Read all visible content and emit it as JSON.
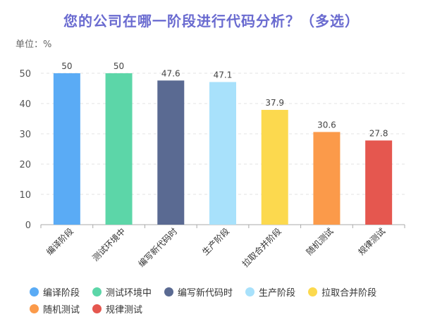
{
  "chart_data": {
    "type": "bar",
    "title": "您的公司在哪一阶段进行代码分析？（多选）",
    "unit_label": "单位：%",
    "categories": [
      "编译阶段",
      "测试环境中",
      "编写新代码时",
      "生产阶段",
      "拉取合并阶段",
      "随机测试",
      "规律测试"
    ],
    "values": [
      50,
      50,
      47.6,
      47.1,
      37.9,
      30.6,
      27.8
    ],
    "value_labels": [
      "50",
      "50",
      "47.6",
      "47.1",
      "37.9",
      "30.6",
      "27.8"
    ],
    "colors": [
      "#5aabf5",
      "#5cd6a8",
      "#5a6a92",
      "#a8e1fb",
      "#fcd94e",
      "#fb9a4a",
      "#e5574f"
    ],
    "ylim": [
      0,
      50
    ],
    "yticks": [
      0,
      10,
      20,
      30,
      40,
      50
    ],
    "xlabel": "",
    "ylabel": "",
    "grid": true,
    "legend_position": "bottom"
  }
}
